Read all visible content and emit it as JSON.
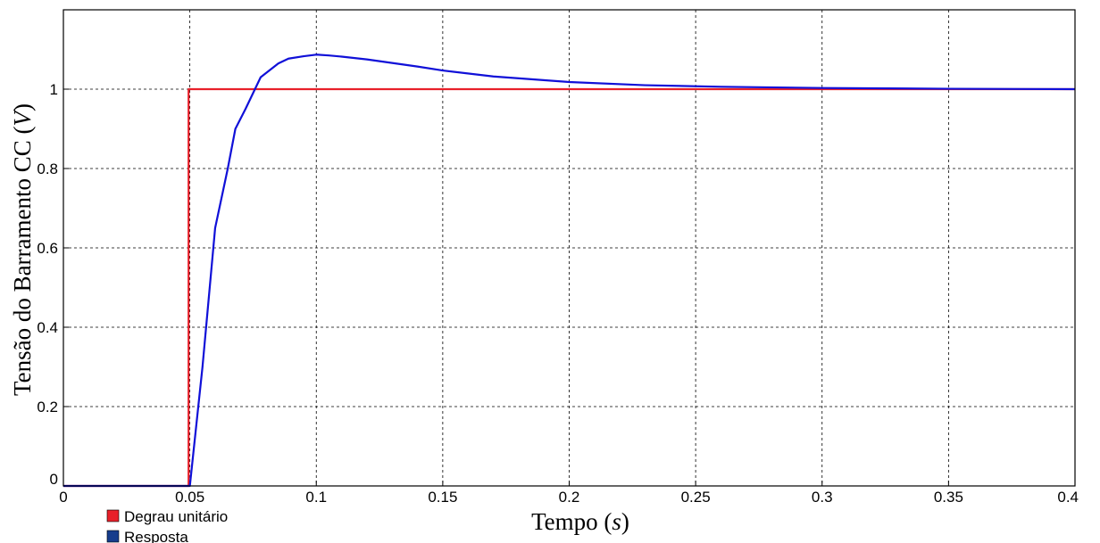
{
  "chart_data": {
    "type": "line",
    "xlabel": "Tempo",
    "xlabel_unit": "s",
    "ylabel": "Tensão do Barramento CC",
    "ylabel_unit": "V",
    "xlim": [
      0,
      0.4
    ],
    "ylim": [
      0,
      1.2
    ],
    "grid": true,
    "legend_position": "bottom-left",
    "x_ticks": [
      "0",
      "0.05",
      "0.1",
      "0.15",
      "0.2",
      "0.25",
      "0.3",
      "0.35",
      "0.4"
    ],
    "y_ticks": [
      "0",
      "0.2",
      "0.4",
      "0.6",
      "0.8",
      "1"
    ],
    "series": [
      {
        "name": "Degrau unitário",
        "color": "#e8202a",
        "x": [
          0,
          0.0495,
          0.0495,
          0.4
        ],
        "y": [
          0,
          0,
          1,
          1
        ]
      },
      {
        "name": "Resposta",
        "color": "#1010d8",
        "x": [
          0,
          0.049,
          0.05,
          0.055,
          0.06,
          0.065,
          0.068,
          0.072,
          0.078,
          0.085,
          0.089,
          0.095,
          0.1,
          0.105,
          0.11,
          0.12,
          0.13,
          0.14,
          0.15,
          0.17,
          0.2,
          0.23,
          0.26,
          0.3,
          0.35,
          0.4
        ],
        "y": [
          0,
          0,
          0,
          0.3,
          0.65,
          0.8,
          0.9,
          0.95,
          1.03,
          1.065,
          1.077,
          1.083,
          1.087,
          1.085,
          1.082,
          1.075,
          1.066,
          1.057,
          1.047,
          1.032,
          1.018,
          1.01,
          1.006,
          1.003,
          1.001,
          1.0
        ]
      }
    ]
  }
}
